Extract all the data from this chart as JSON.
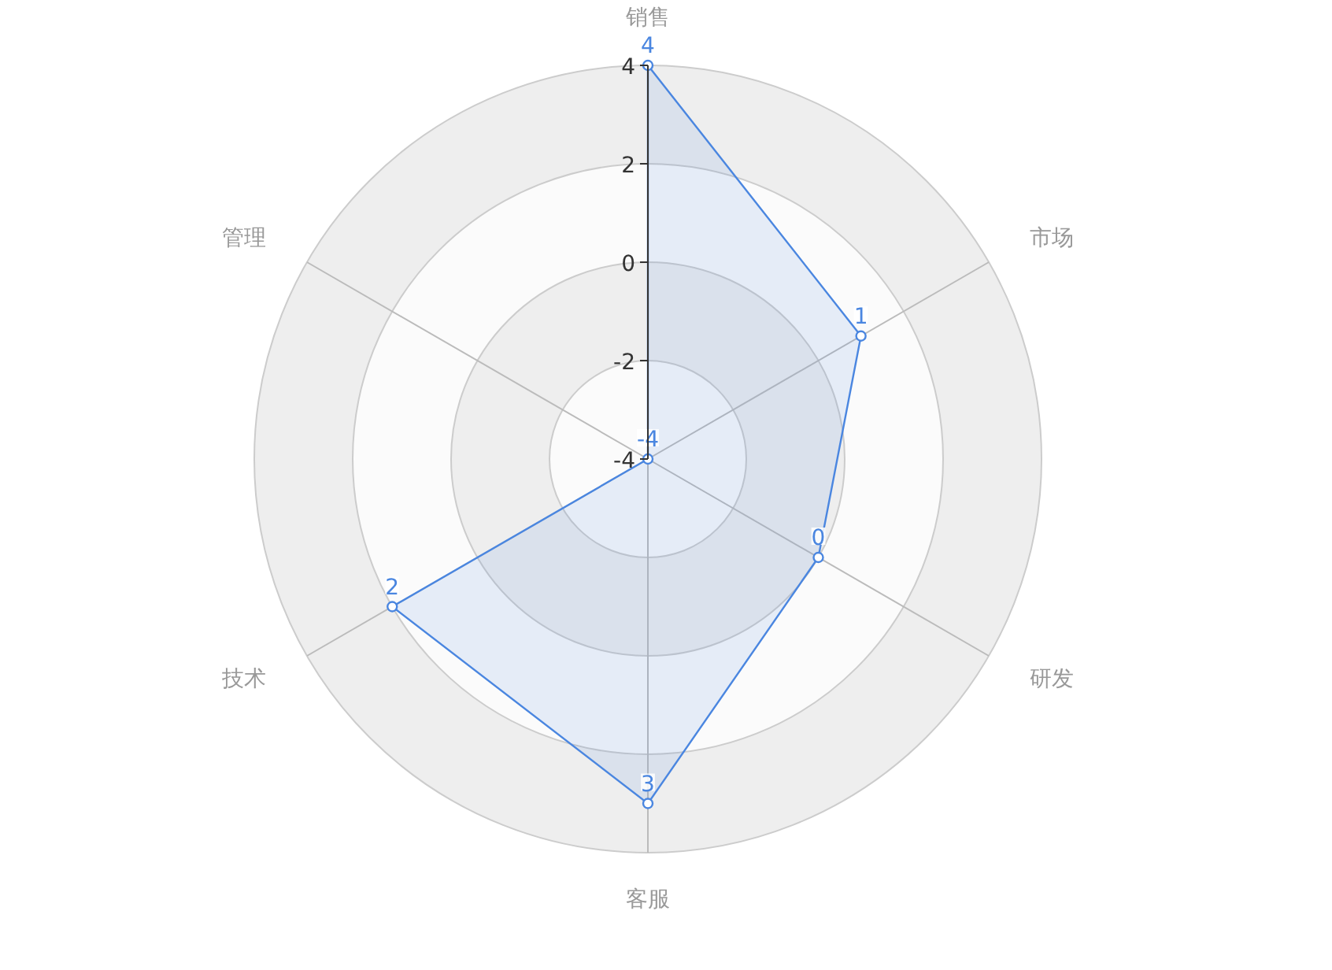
{
  "chart_data": {
    "type": "radar",
    "categories": [
      "销售",
      "市场",
      "研发",
      "客服",
      "技术",
      "管理"
    ],
    "series": [
      {
        "color": "#4a86e0",
        "values": [
          4,
          1,
          0,
          3,
          2,
          -4
        ]
      }
    ],
    "ylim": [
      -4,
      4
    ],
    "yticks": [
      -4,
      -2,
      0,
      2,
      4
    ],
    "grid": true,
    "data_labels": true,
    "marker": "circle"
  }
}
